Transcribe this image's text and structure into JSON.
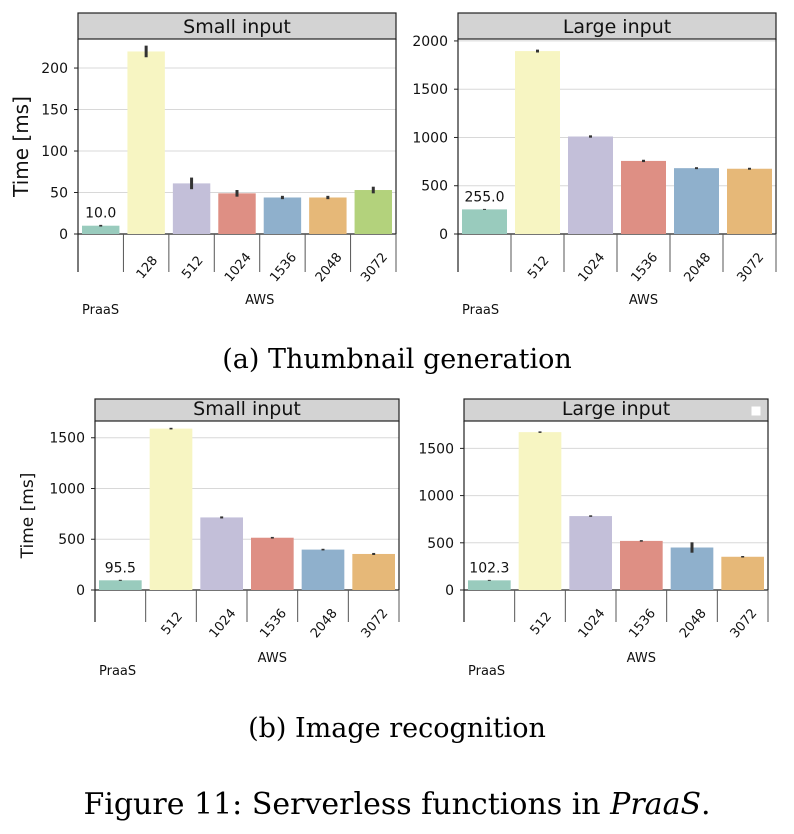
{
  "captions": {
    "a": "(a) Thumbnail generation",
    "b": "(b) Image recognition",
    "figure_prefix": "Figure 11: Serverless functions in ",
    "figure_name": "PraaS",
    "figure_suffix": "."
  },
  "colors": {
    "PraaS": "#99cbbd",
    "128": "#f7f5c2",
    "512": "#f7f5c2",
    "1024": "#c3bfd9",
    "1536": "#de8f84",
    "2048": "#8fb0cc",
    "3072": "#e6b878",
    "512_small_thumb": "#c3bfd9",
    "1024_small_thumb": "#de8f84",
    "1536_small_thumb": "#8fb0cc",
    "2048_small_thumb": "#e6b878",
    "3072_small_thumb": "#b3d27c",
    "title_bg": "#d3d3d3",
    "grid": "#d8d8d8"
  },
  "chart_data": [
    {
      "id": "thumb-small",
      "type": "bar",
      "title": "Small input",
      "ylabel": "Time [ms]",
      "ylim": [
        0,
        235
      ],
      "yticks": [
        0,
        50,
        100,
        150,
        200
      ],
      "categories": [
        "",
        "128",
        "512",
        "1024",
        "1536",
        "2048",
        "3072"
      ],
      "group_labels": [
        "PraaS",
        "AWS"
      ],
      "values": [
        10.0,
        220,
        61,
        49,
        44,
        44,
        53
      ],
      "errors": [
        1,
        7,
        7,
        4,
        2,
        2,
        4
      ],
      "data_labels": [
        "10.0",
        "",
        "",
        "",
        "",
        "",
        ""
      ],
      "colors": [
        "#99cbbd",
        "#f7f5c2",
        "#c3bfd9",
        "#de8f84",
        "#8fb0cc",
        "#e6b878",
        "#b3d27c"
      ],
      "grid": true
    },
    {
      "id": "thumb-large",
      "type": "bar",
      "title": "Large input",
      "ylabel": "",
      "ylim": [
        0,
        2020
      ],
      "yticks": [
        0,
        500,
        1000,
        1500,
        2000
      ],
      "categories": [
        "",
        "512",
        "1024",
        "1536",
        "2048",
        "3072"
      ],
      "group_labels": [
        "PraaS",
        "AWS"
      ],
      "values": [
        255.0,
        1895,
        1010,
        757,
        682,
        676
      ],
      "errors": [
        5,
        15,
        12,
        12,
        10,
        10
      ],
      "data_labels": [
        "255.0",
        "",
        "",
        "",
        "",
        ""
      ],
      "colors": [
        "#99cbbd",
        "#f7f5c2",
        "#c3bfd9",
        "#de8f84",
        "#8fb0cc",
        "#e6b878"
      ],
      "grid": true
    },
    {
      "id": "recog-small",
      "type": "bar",
      "title": "Small input",
      "ylabel": "Time [ms]",
      "ylim": [
        0,
        1665
      ],
      "yticks": [
        0,
        500,
        1000,
        1500
      ],
      "categories": [
        "",
        "512",
        "1024",
        "1536",
        "2048",
        "3072"
      ],
      "group_labels": [
        "PraaS",
        "AWS"
      ],
      "values": [
        95.5,
        1590,
        715,
        515,
        398,
        355
      ],
      "errors": [
        5,
        8,
        10,
        8,
        8,
        10
      ],
      "data_labels": [
        "95.5",
        "",
        "",
        "",
        "",
        ""
      ],
      "colors": [
        "#99cbbd",
        "#f7f5c2",
        "#c3bfd9",
        "#de8f84",
        "#8fb0cc",
        "#e6b878"
      ],
      "grid": true
    },
    {
      "id": "recog-large",
      "type": "bar",
      "title": "Large input",
      "ylabel": "",
      "ylim": [
        0,
        1790
      ],
      "yticks": [
        0,
        500,
        1000,
        1500
      ],
      "categories": [
        "",
        "512",
        "1024",
        "1536",
        "2048",
        "3072"
      ],
      "group_labels": [
        "PraaS",
        "AWS"
      ],
      "values": [
        102.3,
        1672,
        783,
        520,
        450,
        352
      ],
      "errors": [
        5,
        8,
        8,
        8,
        55,
        8
      ],
      "data_labels": [
        "102.3",
        "",
        "",
        "",
        "",
        ""
      ],
      "colors": [
        "#99cbbd",
        "#f7f5c2",
        "#c3bfd9",
        "#de8f84",
        "#8fb0cc",
        "#e6b878"
      ],
      "grid": true,
      "legend": "top-right"
    }
  ]
}
